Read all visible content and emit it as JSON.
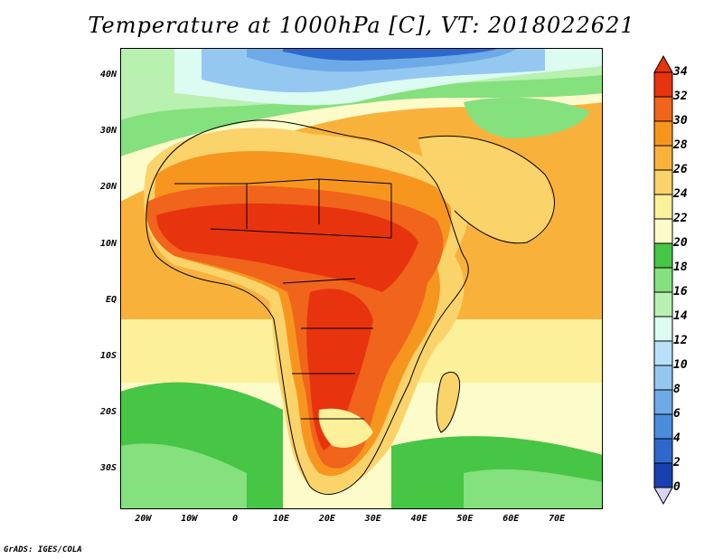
{
  "title": "Temperature at 1000hPa [C], VT: 2018022621",
  "footer": "GrADS: IGES/COLA",
  "map": {
    "projection": "latlon",
    "lon_range": [
      -25,
      80
    ],
    "lat_range": [
      -37,
      45
    ],
    "y_ticks": [
      {
        "label": "40N",
        "lat": 40
      },
      {
        "label": "30N",
        "lat": 30
      },
      {
        "label": "20N",
        "lat": 20
      },
      {
        "label": "10N",
        "lat": 10
      },
      {
        "label": "EQ",
        "lat": 0
      },
      {
        "label": "10S",
        "lat": -10
      },
      {
        "label": "20S",
        "lat": -20
      },
      {
        "label": "30S",
        "lat": -30
      }
    ],
    "x_ticks": [
      {
        "label": "20W",
        "lon": -20
      },
      {
        "label": "10W",
        "lon": -10
      },
      {
        "label": "0",
        "lon": 0
      },
      {
        "label": "10E",
        "lon": 10
      },
      {
        "label": "20E",
        "lon": 20
      },
      {
        "label": "30E",
        "lon": 30
      },
      {
        "label": "40E",
        "lon": 40
      },
      {
        "label": "50E",
        "lon": 50
      },
      {
        "label": "60E",
        "lon": 60
      },
      {
        "label": "70E",
        "lon": 70
      }
    ]
  },
  "colorbar": {
    "labels": [
      "34",
      "32",
      "30",
      "28",
      "26",
      "24",
      "22",
      "20",
      "18",
      "16",
      "14",
      "12",
      "10",
      "8",
      "6",
      "4",
      "2",
      "0"
    ],
    "colors": {
      "above_34": "#e8330f",
      "32-34": "#e8330f",
      "30-32": "#f0641c",
      "28-30": "#f7961f",
      "26-28": "#f8b23c",
      "24-26": "#fbd36b",
      "22-24": "#fcf09a",
      "20-22": "#fdfbc9",
      "18-20": "#47c545",
      "16-18": "#85e07e",
      "14-16": "#b9f1b1",
      "12-14": "#dcfbf1",
      "10-12": "#b8e1f9",
      "8-10": "#95c8f1",
      "6-8": "#6eaae7",
      "4-6": "#4a8ddc",
      "2-4": "#2d69cc",
      "0-2": "#1940b0",
      "below_0": "#d8d4f4"
    }
  }
}
